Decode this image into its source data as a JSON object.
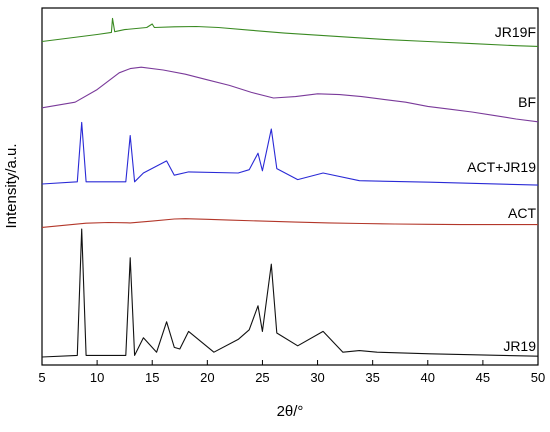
{
  "chart_data": {
    "type": "line",
    "title": "",
    "xlabel": "2θ/°",
    "ylabel": "Intensity/a.u.",
    "xlim": [
      5,
      50
    ],
    "xticks": [
      5,
      10,
      15,
      20,
      25,
      30,
      35,
      40,
      45,
      50
    ],
    "grid": false,
    "legend": "none",
    "series": [
      {
        "name": "JR19F",
        "color": "#3a8a22",
        "x": [
          5,
          7.5,
          10,
          11.3,
          11.4,
          11.6,
          12.5,
          14.5,
          15,
          15.2,
          17,
          19,
          21,
          24,
          27,
          30,
          33,
          36,
          40,
          44,
          48,
          50
        ],
        "y": [
          -0.25,
          0.0,
          0.25,
          0.4,
          1.4,
          0.45,
          0.6,
          0.75,
          1.0,
          0.75,
          0.8,
          0.82,
          0.75,
          0.55,
          0.35,
          0.2,
          0.05,
          -0.1,
          -0.25,
          -0.4,
          -0.55,
          -0.6
        ]
      },
      {
        "name": "BF",
        "color": "#7a3a9a",
        "x": [
          5,
          8,
          10,
          12,
          13,
          14,
          16,
          18,
          20,
          22,
          24,
          26,
          28,
          30,
          32,
          34,
          36,
          38,
          40,
          42,
          44,
          46,
          48,
          50
        ],
        "y": [
          -0.35,
          -0.15,
          0.3,
          0.9,
          1.05,
          1.1,
          1.0,
          0.85,
          0.65,
          0.45,
          0.2,
          0.0,
          0.05,
          0.15,
          0.12,
          0.05,
          -0.05,
          -0.15,
          -0.3,
          -0.4,
          -0.5,
          -0.62,
          -0.75,
          -0.85
        ]
      },
      {
        "name": "ACT+JR19",
        "color": "#2a2ad6",
        "x": [
          5,
          8.2,
          8.6,
          9.0,
          12.6,
          13.0,
          13.4,
          14.2,
          16.3,
          17.0,
          18.3,
          22.8,
          23.8,
          24.6,
          25.0,
          25.8,
          26.3,
          28.2,
          30.5,
          33.8,
          40.2,
          50
        ],
        "y": [
          0.0,
          0.1,
          2.8,
          0.1,
          0.1,
          2.2,
          0.1,
          0.5,
          1.05,
          0.4,
          0.55,
          0.5,
          0.65,
          1.4,
          0.6,
          2.5,
          0.7,
          0.2,
          0.5,
          0.15,
          0.08,
          -0.05
        ]
      },
      {
        "name": "ACT",
        "color": "#b3372a",
        "x": [
          5,
          7,
          9,
          11,
          13,
          15,
          17,
          18,
          20,
          22,
          25,
          28,
          31,
          34,
          37,
          40,
          43,
          46,
          50
        ],
        "y": [
          -0.1,
          0.05,
          0.2,
          0.25,
          0.22,
          0.35,
          0.5,
          0.52,
          0.48,
          0.42,
          0.35,
          0.28,
          0.22,
          0.18,
          0.14,
          0.12,
          0.1,
          0.1,
          0.1
        ]
      },
      {
        "name": "JR19",
        "color": "#111111",
        "x": [
          5,
          8.2,
          8.6,
          9.0,
          12.6,
          13.0,
          13.4,
          14.2,
          15.4,
          16.3,
          17.0,
          17.5,
          18.3,
          20.6,
          22.8,
          23.8,
          24.6,
          25.0,
          25.8,
          26.3,
          28.2,
          30.5,
          32.3,
          33.8,
          35.4,
          40.2,
          50
        ],
        "y": [
          0.0,
          0.1,
          8.0,
          0.1,
          0.1,
          6.2,
          0.1,
          1.2,
          0.3,
          2.2,
          0.6,
          0.5,
          1.6,
          0.3,
          1.1,
          1.7,
          3.2,
          1.6,
          5.8,
          1.5,
          0.7,
          1.6,
          0.3,
          0.4,
          0.3,
          0.2,
          0.05
        ]
      }
    ]
  },
  "series_labels": [
    "JR19F",
    "BF",
    "ACT+JR19",
    "ACT",
    "JR19"
  ]
}
